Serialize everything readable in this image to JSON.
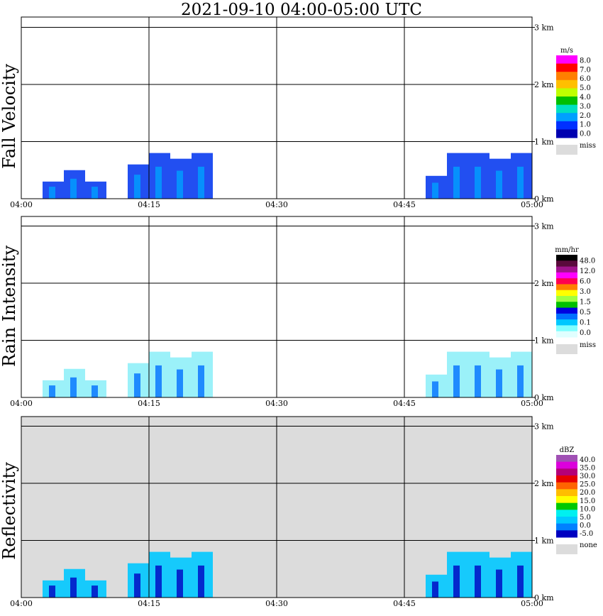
{
  "title": "2021-09-10   04:00-05:00 UTC",
  "x_ticks": [
    "04:00",
    "04:15",
    "04:30",
    "04:45",
    "05:00"
  ],
  "height_ticks": [
    "0 km",
    "1 km",
    "2 km",
    "3 km"
  ],
  "chart_data": [
    {
      "type": "heatmap",
      "ylabel": "Fall Velocity",
      "unit": "m/s",
      "colorbar_labels": [
        "8.0",
        "7.0",
        "6.0",
        "5.0",
        "4.0",
        "3.0",
        "2.0",
        "1.0",
        "0.0"
      ],
      "colorbar_colors": [
        "#ff00ff",
        "#ff0000",
        "#ff7f00",
        "#ffbf00",
        "#bfff00",
        "#00bf00",
        "#00e0c0",
        "#00a0ff",
        "#0030ff",
        "#0000b0"
      ],
      "missing_label": "miss",
      "missing_color": "#dcdcdc",
      "x_range_minutes": [
        0,
        60
      ],
      "y_range_km": [
        0,
        3.2
      ],
      "background": "#ffffff",
      "echo_color": "#0a3cf0",
      "echo_shade": "#00a0ff",
      "echo_top_km": [
        0,
        0.3,
        0.5,
        0.3,
        0,
        0.6,
        0.8,
        0.7,
        0.8,
        0,
        0,
        0,
        0,
        0,
        0,
        0,
        0,
        0,
        0,
        0.4,
        0.8,
        0.8,
        0.7,
        0.8
      ]
    },
    {
      "type": "heatmap",
      "ylabel": "Rain Intensity",
      "unit": "mm/hr",
      "colorbar_labels": [
        "48.0",
        "12.0",
        "6.0",
        "3.0",
        "1.5",
        "0.5",
        "0.1",
        "0.0"
      ],
      "colorbar_colors": [
        "#000000",
        "#5a0a3c",
        "#a0148c",
        "#ff00ff",
        "#ff0050",
        "#ff7f00",
        "#ffff00",
        "#a0ff40",
        "#00c000",
        "#0000e0",
        "#0070ff",
        "#00c8ff",
        "#80ffff",
        "#e0ffff"
      ],
      "missing_label": "miss",
      "missing_color": "#dcdcdc",
      "x_range_minutes": [
        0,
        60
      ],
      "y_range_km": [
        0,
        3.2
      ],
      "background": "#ffffff",
      "echo_color": "#90f0f8",
      "echo_shade": "#0070ff",
      "echo_top_km": [
        0,
        0.3,
        0.5,
        0.3,
        0,
        0.6,
        0.8,
        0.7,
        0.8,
        0,
        0,
        0,
        0,
        0,
        0,
        0,
        0,
        0,
        0,
        0.4,
        0.8,
        0.8,
        0.7,
        0.8
      ]
    },
    {
      "type": "heatmap",
      "ylabel": "Reflectivity",
      "unit": "dBZ",
      "colorbar_labels": [
        "40.0",
        "35.0",
        "30.0",
        "25.0",
        "20.0",
        "15.0",
        "10.0",
        "5.0",
        "0.0",
        "-5.0"
      ],
      "colorbar_colors": [
        "#a050b4",
        "#dc00dc",
        "#b40078",
        "#e60000",
        "#ff6400",
        "#ffbe00",
        "#ffff00",
        "#00c800",
        "#00f0f0",
        "#00c8ff",
        "#0080ff",
        "#0000c0"
      ],
      "missing_label": "none",
      "missing_color": "#dcdcdc",
      "x_range_minutes": [
        0,
        60
      ],
      "y_range_km": [
        0,
        3.2
      ],
      "background": "#dcdcdc",
      "echo_color": "#00c8ff",
      "echo_shade": "#0000c0",
      "echo_top_km": [
        0,
        0.3,
        0.5,
        0.3,
        0,
        0.6,
        0.8,
        0.7,
        0.8,
        0,
        0,
        0,
        0,
        0,
        0,
        0,
        0,
        0,
        0,
        0.4,
        0.8,
        0.8,
        0.7,
        0.8
      ]
    }
  ]
}
